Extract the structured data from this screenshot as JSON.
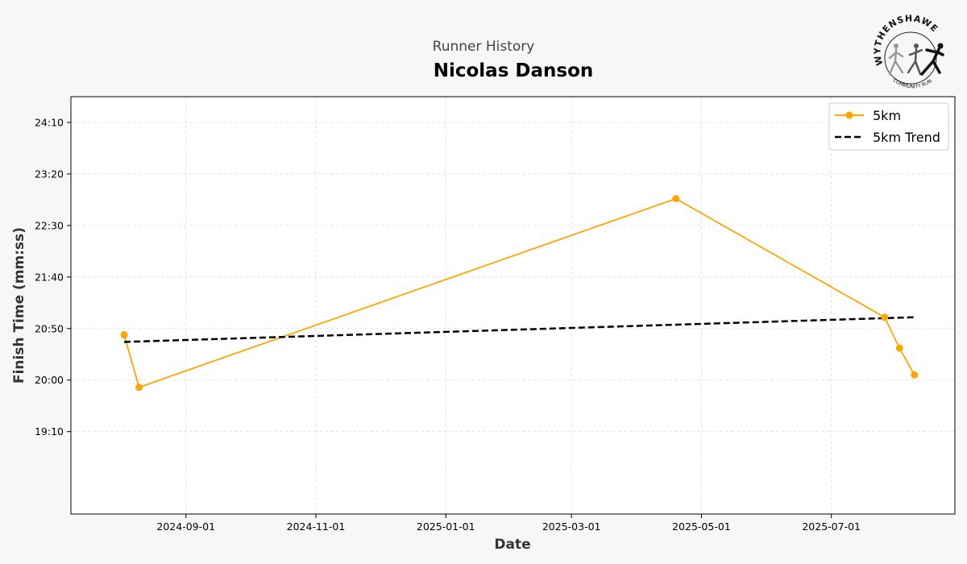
{
  "header": {
    "subtitle": "Runner History",
    "title": "Nicolas Danson"
  },
  "logo": {
    "top_text": "WYTHENSHAWE",
    "bottom_text": "COMMUNITY RUN"
  },
  "colors": {
    "background": "#f7f7f7",
    "series": "#ffa500",
    "trend": "#000000",
    "grid": "#dddddd"
  },
  "chart_data": {
    "type": "line",
    "xlabel": "Date",
    "ylabel": "Finish Time (mm:ss)",
    "x_axis_type": "date",
    "xlim": [
      "2024-07-09",
      "2025-08-28"
    ],
    "ylim_seconds": [
      1070,
      1475
    ],
    "x_ticks": [
      "2024-09-01",
      "2024-11-01",
      "2025-01-01",
      "2025-03-01",
      "2025-05-01",
      "2025-07-01"
    ],
    "y_ticks": [
      {
        "seconds": 1150,
        "label": "19:10"
      },
      {
        "seconds": 1200,
        "label": "20:00"
      },
      {
        "seconds": 1250,
        "label": "20:50"
      },
      {
        "seconds": 1300,
        "label": "21:40"
      },
      {
        "seconds": 1350,
        "label": "22:30"
      },
      {
        "seconds": 1400,
        "label": "23:20"
      },
      {
        "seconds": 1450,
        "label": "24:10"
      }
    ],
    "grid": true,
    "legend_position": "top-right",
    "series": [
      {
        "name": "5km",
        "style": "line-markers",
        "points": [
          {
            "x": "2024-08-03",
            "y": 1244
          },
          {
            "x": "2024-08-10",
            "y": 1193
          },
          {
            "x": "2025-04-19",
            "y": 1376
          },
          {
            "x": "2025-07-26",
            "y": 1261
          },
          {
            "x": "2025-08-02",
            "y": 1231
          },
          {
            "x": "2025-08-09",
            "y": 1205
          }
        ]
      },
      {
        "name": "5km Trend",
        "style": "dashed",
        "points": [
          {
            "x": "2024-08-03",
            "y": 1237
          },
          {
            "x": "2025-08-09",
            "y": 1261
          }
        ]
      }
    ]
  }
}
